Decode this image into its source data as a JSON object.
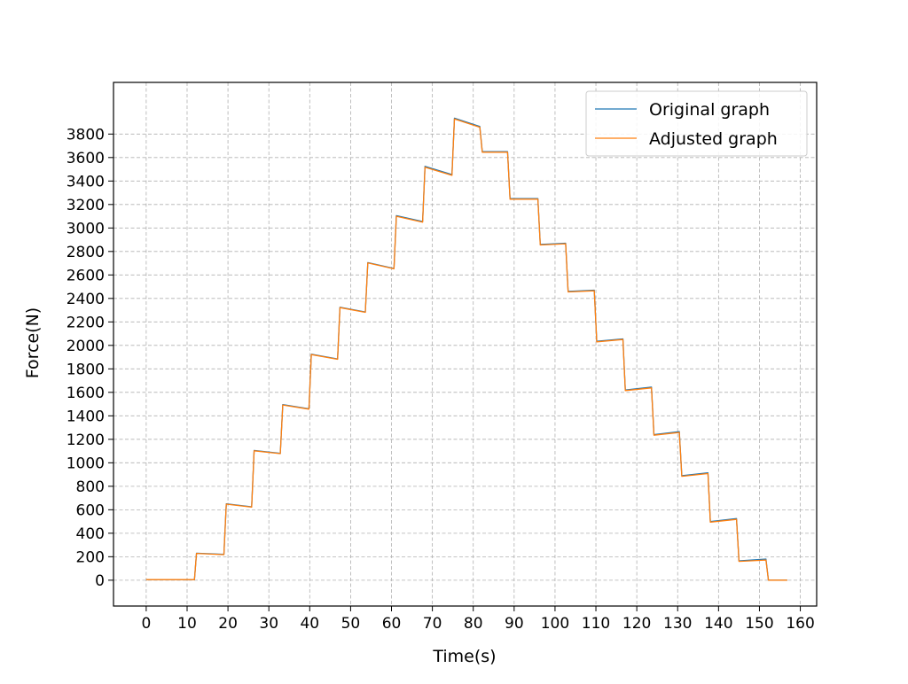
{
  "chart_data": {
    "type": "line",
    "title": "",
    "xlabel": "Time(s)",
    "ylabel": "Force(N)",
    "xlim": [
      -8,
      164
    ],
    "ylim": [
      -220,
      4240
    ],
    "x_ticks": [
      0,
      10,
      20,
      30,
      40,
      50,
      60,
      70,
      80,
      90,
      100,
      110,
      120,
      130,
      140,
      150,
      160
    ],
    "y_ticks": [
      0,
      200,
      400,
      600,
      800,
      1000,
      1200,
      1400,
      1600,
      1800,
      2000,
      2200,
      2400,
      2600,
      2800,
      3000,
      3200,
      3400,
      3600,
      3800
    ],
    "grid": true,
    "legend_position": "top-right",
    "series": [
      {
        "name": "Original graph",
        "color": "#1f77b4",
        "x": [
          0,
          11.8,
          12.3,
          19.0,
          19.6,
          25.8,
          26.4,
          32.8,
          33.4,
          39.8,
          40.4,
          46.8,
          47.4,
          53.6,
          54.2,
          60.6,
          61.2,
          67.6,
          68.2,
          74.8,
          75.4,
          81.6,
          82.2,
          88.4,
          89.0,
          95.8,
          96.4,
          102.6,
          103.2,
          109.6,
          110.2,
          116.6,
          117.2,
          123.6,
          124.2,
          130.4,
          131.0,
          137.4,
          138.0,
          144.4,
          145.0,
          151.6,
          152.2,
          156.8
        ],
        "y": [
          5,
          5,
          230,
          220,
          650,
          625,
          1105,
          1080,
          1495,
          1460,
          1925,
          1885,
          2325,
          2285,
          2705,
          2655,
          3105,
          3055,
          3525,
          3455,
          3935,
          3865,
          3650,
          3650,
          3250,
          3250,
          2860,
          2870,
          2460,
          2470,
          2035,
          2055,
          1620,
          1645,
          1240,
          1265,
          890,
          915,
          500,
          525,
          165,
          180,
          0,
          0
        ]
      },
      {
        "name": "Adjusted graph",
        "color": "#ff7f0e",
        "x": [
          0,
          11.8,
          12.3,
          19.0,
          19.6,
          25.8,
          26.4,
          32.8,
          33.4,
          39.8,
          40.4,
          46.8,
          47.4,
          53.6,
          54.2,
          60.6,
          61.2,
          67.6,
          68.2,
          74.8,
          75.4,
          81.6,
          82.2,
          88.4,
          89.0,
          95.8,
          96.4,
          102.6,
          103.2,
          109.6,
          110.2,
          116.6,
          117.2,
          123.6,
          124.2,
          130.4,
          131.0,
          137.4,
          138.0,
          144.4,
          145.0,
          151.6,
          152.2,
          156.8
        ],
        "y": [
          5,
          5,
          228,
          218,
          648,
          622,
          1102,
          1078,
          1492,
          1457,
          1922,
          1882,
          2322,
          2282,
          2702,
          2652,
          3100,
          3050,
          3518,
          3448,
          3928,
          3858,
          3645,
          3645,
          3245,
          3245,
          2855,
          2865,
          2455,
          2465,
          2030,
          2050,
          1615,
          1638,
          1235,
          1258,
          885,
          908,
          495,
          518,
          160,
          172,
          0,
          0
        ]
      }
    ]
  }
}
